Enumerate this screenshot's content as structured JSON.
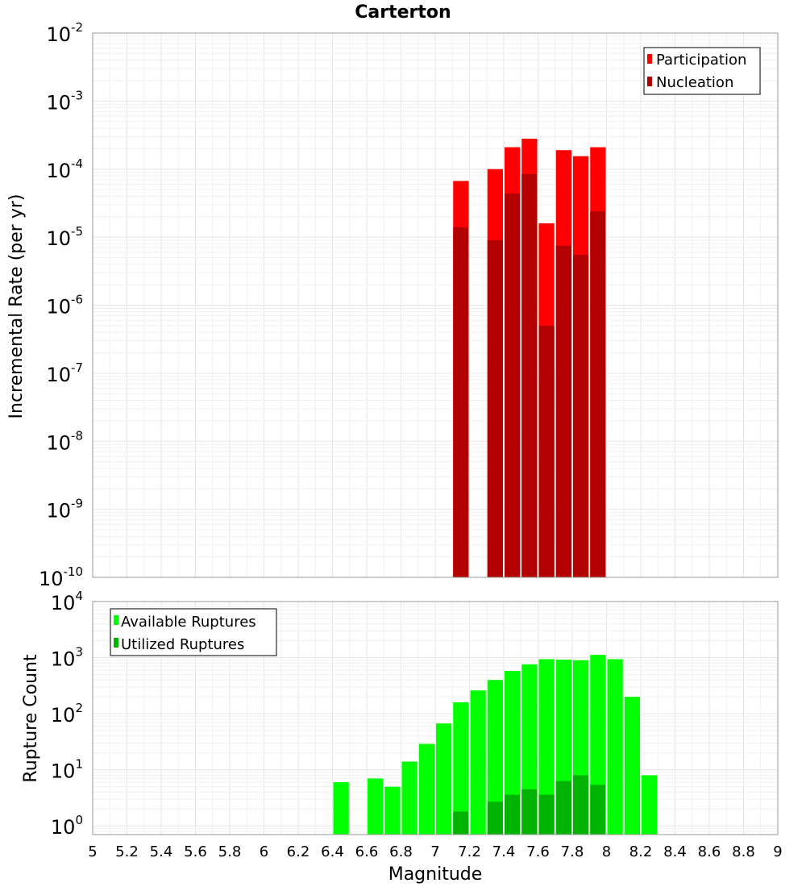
{
  "chart_data": [
    {
      "type": "bar",
      "title": "Carterton",
      "xlabel": "",
      "ylabel": "Incremental Rate (per yr)",
      "yscale": "log",
      "ylim": [
        1e-10,
        0.01
      ],
      "xlim": [
        5,
        9
      ],
      "grid": true,
      "legend_position": "top-right",
      "bin_width": 0.1,
      "x": [
        7.15,
        7.35,
        7.45,
        7.55,
        7.65,
        7.75,
        7.85,
        7.95
      ],
      "series": [
        {
          "name": "Participation",
          "color": "#ff0000",
          "values": [
            6.7e-05,
            0.0001,
            0.00021,
            0.00028,
            1.6e-05,
            0.00019,
            0.000155,
            0.00021
          ]
        },
        {
          "name": "Nucleation",
          "color": "#b30000",
          "values": [
            1.4e-05,
            9e-06,
            4.4e-05,
            8.5e-05,
            5e-07,
            7.5e-06,
            5.5e-06,
            2.4e-05
          ]
        }
      ],
      "yticks": [
        {
          "base": "10",
          "exp": "-10"
        },
        {
          "base": "10",
          "exp": "-9"
        },
        {
          "base": "10",
          "exp": "-8"
        },
        {
          "base": "10",
          "exp": "-7"
        },
        {
          "base": "10",
          "exp": "-6"
        },
        {
          "base": "10",
          "exp": "-5"
        },
        {
          "base": "10",
          "exp": "-4"
        },
        {
          "base": "10",
          "exp": "-3"
        },
        {
          "base": "10",
          "exp": "-2"
        }
      ]
    },
    {
      "type": "bar",
      "title": "",
      "xlabel": "Magnitude",
      "ylabel": "Rupture Count",
      "yscale": "log",
      "ylim": [
        0.7,
        10000
      ],
      "xlim": [
        5,
        9
      ],
      "grid": true,
      "legend_position": "top-left",
      "bin_width": 0.1,
      "x": [
        6.45,
        6.65,
        6.75,
        6.85,
        6.95,
        7.05,
        7.15,
        7.25,
        7.35,
        7.45,
        7.55,
        7.65,
        7.75,
        7.85,
        7.95,
        8.05,
        8.15,
        8.25
      ],
      "series": [
        {
          "name": "Available Ruptures",
          "color": "#00ff00",
          "values": [
            6,
            7,
            5,
            14,
            29,
            67,
            160,
            260,
            400,
            580,
            760,
            940,
            920,
            900,
            1120,
            940,
            200,
            8
          ]
        },
        {
          "name": "Utilized Ruptures",
          "color": "#00b300",
          "values": [
            0,
            0,
            0,
            0,
            0,
            0,
            1.8,
            0,
            2.7,
            3.6,
            4.5,
            3.6,
            6.3,
            8,
            5.4,
            0,
            0,
            0
          ]
        }
      ],
      "xticks": [
        "5",
        "5.2",
        "5.4",
        "5.6",
        "5.8",
        "6",
        "6.2",
        "6.4",
        "6.6",
        "6.8",
        "7",
        "7.2",
        "7.4",
        "7.6",
        "7.8",
        "8",
        "8.2",
        "8.4",
        "8.6",
        "8.8",
        "9"
      ],
      "yticks": [
        {
          "base": "10",
          "exp": "0"
        },
        {
          "base": "10",
          "exp": "1"
        },
        {
          "base": "10",
          "exp": "2"
        },
        {
          "base": "10",
          "exp": "3"
        },
        {
          "base": "10",
          "exp": "4"
        }
      ]
    }
  ]
}
